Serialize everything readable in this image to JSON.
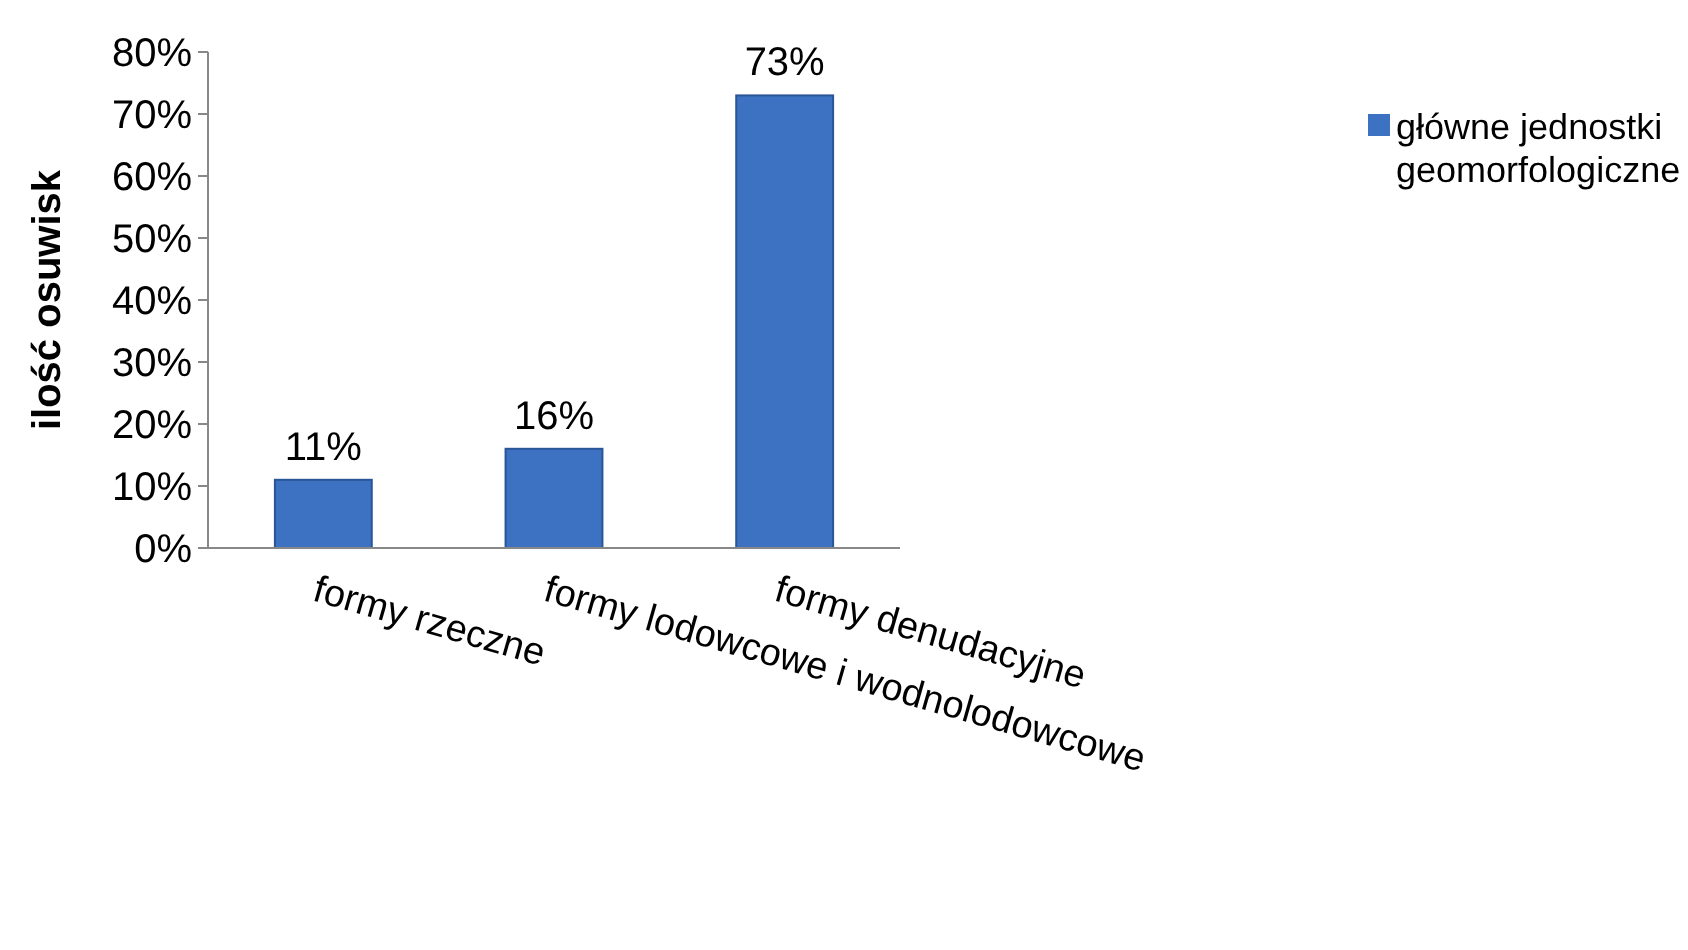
{
  "chart_data": {
    "type": "bar",
    "ylabel": "ilość osuwisk",
    "categories": [
      "formy rzeczne",
      "formy lodowcowe i wodnolodowcowe",
      "formy denudacyjne"
    ],
    "series": [
      {
        "name": "główne jednostki geomorfologiczne",
        "color": "#3d72c2",
        "values": [
          11,
          16,
          73
        ],
        "value_labels": [
          "11%",
          "16%",
          "73%"
        ]
      }
    ],
    "ylim": [
      0,
      80
    ],
    "yticks": [
      {
        "value": 0,
        "label": "0%"
      },
      {
        "value": 10,
        "label": "10%"
      },
      {
        "value": 20,
        "label": "20%"
      },
      {
        "value": 30,
        "label": "30%"
      },
      {
        "value": 40,
        "label": "40%"
      },
      {
        "value": 50,
        "label": "50%"
      },
      {
        "value": 60,
        "label": "60%"
      },
      {
        "value": 70,
        "label": "70%"
      },
      {
        "value": 80,
        "label": "80%"
      }
    ],
    "grid": false,
    "legend": "right"
  }
}
